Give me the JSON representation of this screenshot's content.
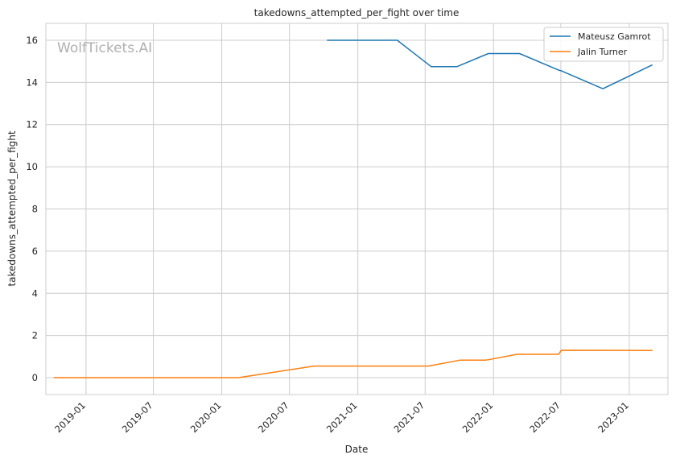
{
  "chart_data": {
    "type": "line",
    "title": "takedowns_attempted_per_fight over time",
    "xlabel": "Date",
    "ylabel": "takedowns_attempted_per_fight",
    "watermark": "WolfTickets.AI",
    "xlim": [
      "2018-09-15",
      "2023-04-15"
    ],
    "ylim": [
      -0.8,
      16.8
    ],
    "x_ticks": [
      "2019-01",
      "2019-07",
      "2020-01",
      "2020-07",
      "2021-01",
      "2021-07",
      "2022-01",
      "2022-07",
      "2023-01"
    ],
    "y_ticks": [
      0,
      2,
      4,
      6,
      8,
      10,
      12,
      14,
      16
    ],
    "grid": true,
    "legend_position": "top-right",
    "series": [
      {
        "name": "Mateusz Gamrot",
        "color": "#1f77b4",
        "points": [
          {
            "x": "2020-10-10",
            "y": 16.0
          },
          {
            "x": "2021-04-17",
            "y": 16.0
          },
          {
            "x": "2021-07-17",
            "y": 14.75
          },
          {
            "x": "2021-09-25",
            "y": 14.75
          },
          {
            "x": "2021-12-18",
            "y": 15.37
          },
          {
            "x": "2022-03-12",
            "y": 15.37
          },
          {
            "x": "2022-06-25",
            "y": 14.58
          },
          {
            "x": "2022-07-02",
            "y": 14.55
          },
          {
            "x": "2022-10-22",
            "y": 13.7
          },
          {
            "x": "2023-03-04",
            "y": 14.83
          }
        ]
      },
      {
        "name": "Jalin Turner",
        "color": "#ff7f0e",
        "points": [
          {
            "x": "2018-10-06",
            "y": 0.0
          },
          {
            "x": "2020-02-15",
            "y": 0.0
          },
          {
            "x": "2020-09-05",
            "y": 0.55
          },
          {
            "x": "2021-07-10",
            "y": 0.55
          },
          {
            "x": "2021-10-02",
            "y": 0.83
          },
          {
            "x": "2021-12-11",
            "y": 0.83
          },
          {
            "x": "2022-03-05",
            "y": 1.11
          },
          {
            "x": "2022-06-25",
            "y": 1.11
          },
          {
            "x": "2022-07-02",
            "y": 1.3
          },
          {
            "x": "2023-03-04",
            "y": 1.29
          }
        ]
      }
    ]
  }
}
